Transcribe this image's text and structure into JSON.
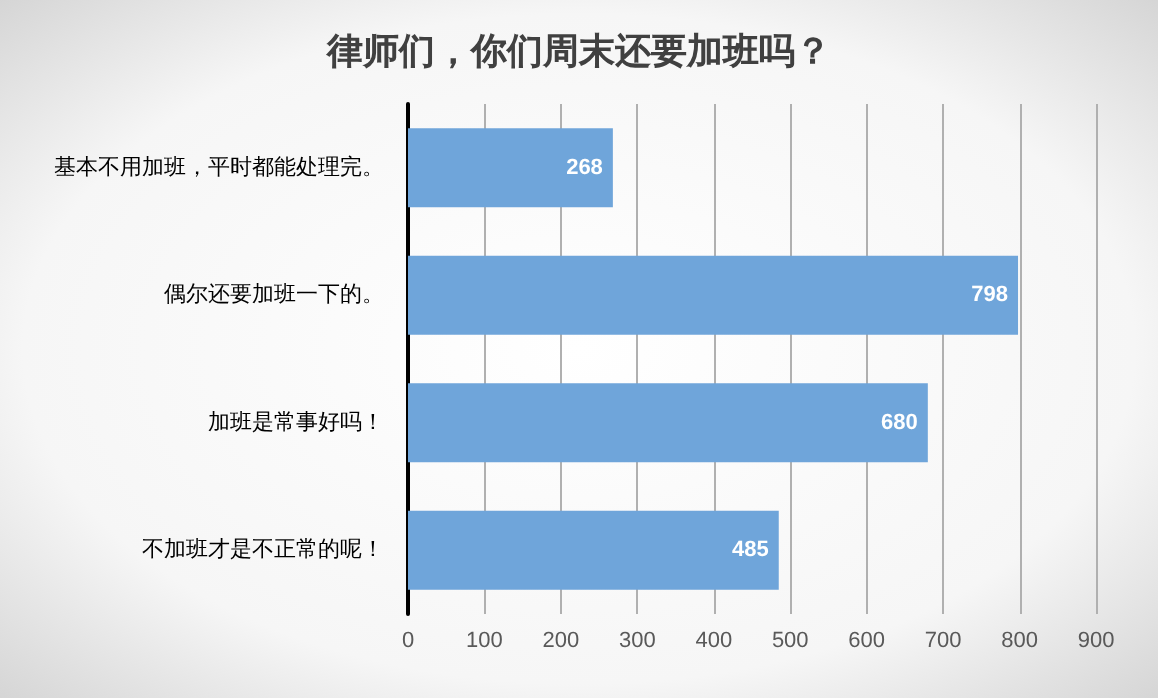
{
  "chart_data": {
    "type": "bar",
    "title": "律师们，你们周末还要加班吗？",
    "orientation": "horizontal",
    "categories": [
      "基本不用加班，平时都能处理完。",
      "偶尔还要加班一下的。",
      "加班是常事好吗！",
      "不加班才是不正常的呢！"
    ],
    "values": [
      268,
      798,
      680,
      485
    ],
    "color": "#6fa5da",
    "xlim": [
      0,
      900
    ],
    "xticks": [
      0,
      100,
      200,
      300,
      400,
      500,
      600,
      700,
      800,
      900
    ],
    "grid": "x",
    "data_labels": true
  }
}
